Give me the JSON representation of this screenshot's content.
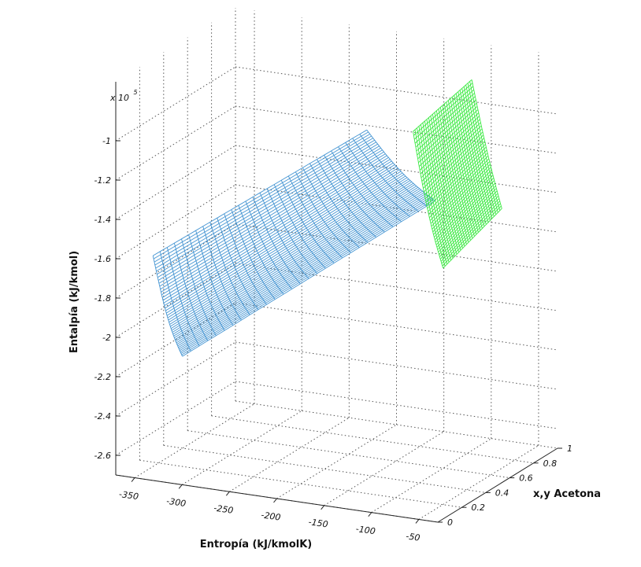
{
  "chart_data": {
    "type": "surface3d",
    "xlabel": "Entropía (kJ/kmolK)",
    "ylabel": "x,y Acetona",
    "zlabel": "Entalpía (kJ/kmol)",
    "z_multiplier": "x 10",
    "z_multiplier_exponent": "5",
    "x_ticks": [
      "-350",
      "-300",
      "-250",
      "-200",
      "-150",
      "-100",
      "-50"
    ],
    "y_ticks": [
      "0",
      "0.2",
      "0.4",
      "0.6",
      "0.8",
      "1"
    ],
    "z_ticks": [
      "-1",
      "-1.2",
      "-1.4",
      "-1.6",
      "-1.8",
      "-2",
      "-2.2",
      "-2.4",
      "-2.6"
    ],
    "xlim": [
      -370,
      -30
    ],
    "ylim": [
      0,
      1
    ],
    "zlim": [
      -2.7,
      -0.7
    ],
    "grid": true,
    "series": [
      {
        "color": "#3a8fd0",
        "corners": {
          "s_lo_x0": {
            "x": -337,
            "y": 0.05,
            "z": -1.58
          },
          "s_lo_x1": {
            "x": -225,
            "y": 0.95,
            "z": -1.2
          },
          "s_hi_x0": {
            "x": -306,
            "y": 0.05,
            "z": -2.07
          },
          "s_hi_x1": {
            "x": -153,
            "y": 0.95,
            "z": -1.51
          }
        }
      },
      {
        "color": "#33e83a",
        "corners": {
          "s_lo_x0": {
            "x": -132,
            "y": 0.6,
            "z": -1.01
          },
          "s_lo_x1": {
            "x": -118,
            "y": 0.98,
            "z": -0.88
          },
          "s_hi_x0": {
            "x": -75,
            "y": 0.4,
            "z": -1.59
          },
          "s_hi_x1": {
            "x": -61,
            "y": 0.78,
            "z": -1.42
          }
        }
      }
    ]
  }
}
